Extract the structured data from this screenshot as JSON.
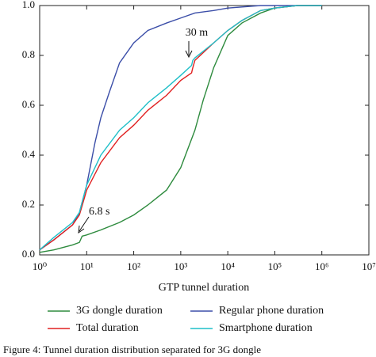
{
  "chart_data": {
    "type": "line",
    "xlabel": "GTP tunnel duration",
    "caption": "Figure 4: Tunnel duration distribution separated for 3G dongle",
    "xscale": "log",
    "xlim": [
      1,
      10000000
    ],
    "xticks": [
      {
        "value": 1,
        "label": "10⁰"
      },
      {
        "value": 10,
        "label": "10¹"
      },
      {
        "value": 100,
        "label": "10²"
      },
      {
        "value": 1000,
        "label": "10³"
      },
      {
        "value": 10000,
        "label": "10⁴"
      },
      {
        "value": 100000,
        "label": "10⁵"
      },
      {
        "value": 1000000,
        "label": "10⁶"
      },
      {
        "value": 10000000,
        "label": "10⁷"
      }
    ],
    "ylim": [
      0,
      1
    ],
    "yticks": [
      {
        "value": 0,
        "label": "0.0"
      },
      0.2,
      0.4,
      0.6,
      0.8,
      {
        "value": 1,
        "label": "1.0"
      }
    ],
    "grid": false,
    "legend": "bottom",
    "annotations": [
      {
        "text": "30 m"
      },
      {
        "text": "6.8 s"
      }
    ],
    "series": [
      {
        "name": "3G dongle duration",
        "color": "#2e8b3e",
        "x": [
          1,
          2,
          5,
          7,
          8,
          10,
          20,
          50,
          100,
          200,
          500,
          1000,
          2000,
          3000,
          5000,
          10000,
          20000,
          50000,
          100000,
          300000,
          1000000
        ],
        "values": [
          0.01,
          0.02,
          0.04,
          0.05,
          0.075,
          0.08,
          0.1,
          0.13,
          0.16,
          0.2,
          0.26,
          0.35,
          0.5,
          0.62,
          0.75,
          0.88,
          0.93,
          0.97,
          0.99,
          1.0,
          1.0
        ]
      },
      {
        "name": "Regular phone duration",
        "color": "#3b4ea8",
        "x": [
          1,
          2,
          5,
          7,
          10,
          15,
          20,
          30,
          50,
          100,
          200,
          500,
          1000,
          2000,
          5000,
          10000,
          50000,
          1000000
        ],
        "values": [
          0.02,
          0.06,
          0.12,
          0.17,
          0.28,
          0.45,
          0.55,
          0.65,
          0.77,
          0.85,
          0.9,
          0.93,
          0.95,
          0.97,
          0.98,
          0.99,
          1.0,
          1.0
        ]
      },
      {
        "name": "Total duration",
        "color": "#e02020",
        "x": [
          1,
          2,
          5,
          7,
          10,
          20,
          50,
          100,
          200,
          500,
          1000,
          1700,
          1800,
          2000,
          5000,
          10000,
          20000,
          50000,
          100000,
          300000,
          1000000
        ],
        "values": [
          0.02,
          0.06,
          0.12,
          0.16,
          0.26,
          0.37,
          0.47,
          0.52,
          0.58,
          0.64,
          0.7,
          0.73,
          0.75,
          0.78,
          0.85,
          0.9,
          0.94,
          0.98,
          0.99,
          1.0,
          1.0
        ]
      },
      {
        "name": "Smartphone duration",
        "color": "#1fbfc8",
        "x": [
          1,
          2,
          5,
          7,
          10,
          20,
          50,
          100,
          200,
          500,
          1000,
          1700,
          1800,
          2000,
          5000,
          10000,
          20000,
          50000,
          100000,
          300000,
          1000000
        ],
        "values": [
          0.02,
          0.07,
          0.13,
          0.17,
          0.28,
          0.4,
          0.5,
          0.55,
          0.61,
          0.67,
          0.72,
          0.76,
          0.78,
          0.79,
          0.85,
          0.9,
          0.94,
          0.98,
          0.99,
          1.0,
          1.0
        ]
      }
    ]
  }
}
